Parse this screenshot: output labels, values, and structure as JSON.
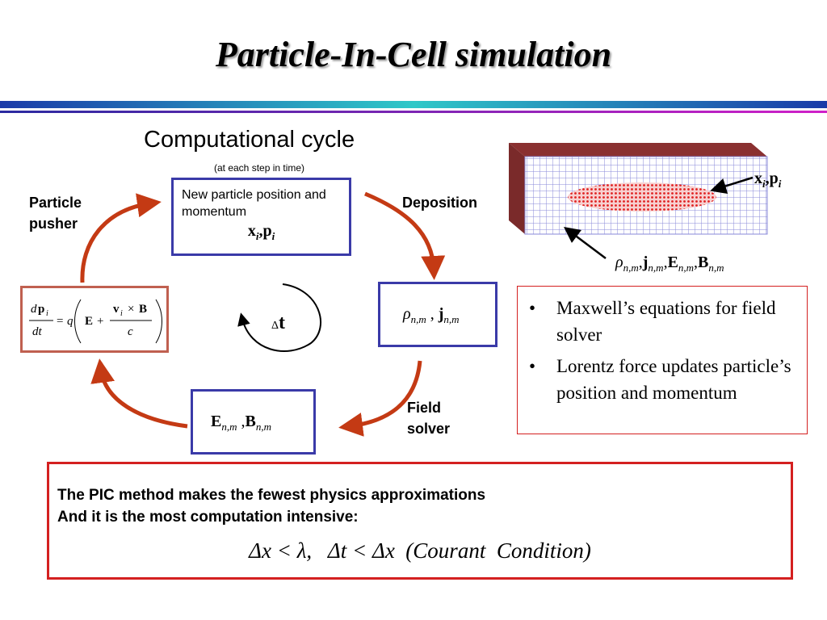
{
  "slide": {
    "title": "Particle-In-Cell simulation"
  },
  "cycle": {
    "heading": "Computational cycle",
    "subheading": "(at each step in time)",
    "top_box": {
      "text": "New particle position and momentum",
      "formula": "x , p"
    },
    "right_box": {
      "formula": "ρ , j"
    },
    "bottom_box": {
      "formula": "E , B"
    },
    "left_box": {
      "formula": "dp/dt = q(E + v × B / c)"
    },
    "center": {
      "symbol": "t",
      "delta": "Δ"
    },
    "labels": {
      "particle_pusher": "Particle pusher",
      "deposition": "Deposition",
      "field_solver": "Field solver"
    },
    "arrow_color": "#c43a14"
  },
  "grid_figure": {
    "particle_label": "x , p",
    "field_label": "ρ , j , E , B"
  },
  "notes": {
    "bullets": [
      "Maxwell’s equations for field solver",
      "Lorentz force updates particle’s position and momentum"
    ]
  },
  "summary": {
    "line1": "The PIC method makes the fewest physics approximations",
    "line2": "And it is the most computation intensive:",
    "condition": "Δx < λ,   Δt < Δx  (Courant  Condition)"
  },
  "colors": {
    "blue_box": "#3a3aa8",
    "red_box": "#d42020",
    "particle_red": "#e02020"
  }
}
